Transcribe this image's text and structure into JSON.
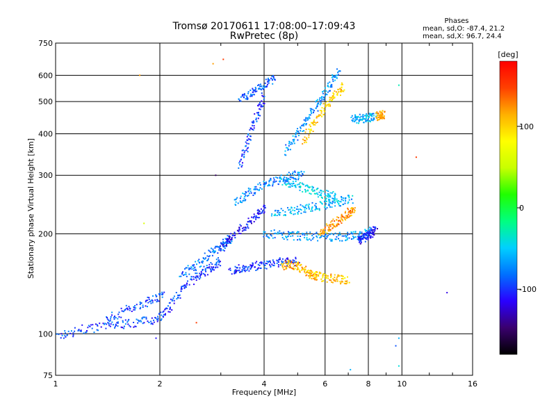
{
  "chart_data": {
    "type": "scatter",
    "title": "Tromsø 20170611 17:08:00–17:09:43",
    "subtitle": "RwPretec (8p)",
    "xlabel": "Frequency [MHz]",
    "ylabel": "Stationary phase Virtual Height [km]",
    "xscale": "log",
    "yscale": "log",
    "xlim": [
      1,
      16
    ],
    "ylim": [
      75,
      750
    ],
    "x_ticks": [
      1,
      2,
      4,
      6,
      8,
      10,
      16
    ],
    "x_tick_labels": [
      "1",
      "2",
      "4",
      "6",
      "8",
      "10",
      "16"
    ],
    "y_ticks": [
      75,
      100,
      200,
      300,
      400,
      500,
      600,
      750
    ],
    "y_tick_labels": [
      "75",
      "100",
      "200",
      "300",
      "400",
      "500",
      "600",
      "750"
    ],
    "grid": true,
    "stats": {
      "heading": "Phases",
      "line_o": "mean, sd,O: -87.4, 21.2",
      "line_x": "mean, sd,X:  96.7, 24.4"
    },
    "colorbar": {
      "label": "[deg]",
      "range": [
        -180,
        180
      ],
      "ticks": [
        100,
        0,
        -100
      ],
      "tick_labels": [
        "100",
        "0",
        "-100"
      ],
      "colormap": [
        "#000000",
        "#3a006e",
        "#2a00ff",
        "#0070ff",
        "#00d0ff",
        "#00ff80",
        "#20ff00",
        "#c8ff00",
        "#ffff00",
        "#ffb000",
        "#ff4000",
        "#ff0000"
      ]
    },
    "trace_segments": [
      {
        "x": [
          1.0,
          1.2,
          1.45,
          1.7,
          1.95,
          2.15,
          2.35,
          2.6,
          2.8,
          3.0
        ],
        "y": [
          98,
          103,
          106,
          108,
          111,
          120,
          140,
          150,
          158,
          165
        ],
        "phase": -95
      },
      {
        "x": [
          1.4,
          1.6,
          1.85,
          2.05
        ],
        "y": [
          110,
          118,
          125,
          132
        ],
        "phase": -90
      },
      {
        "x": [
          2.3,
          2.55,
          2.8,
          3.05,
          3.2
        ],
        "y": [
          150,
          160,
          175,
          185,
          195
        ],
        "phase": -80
      },
      {
        "x": [
          3.0,
          3.2,
          3.5,
          3.8,
          4.0
        ],
        "y": [
          180,
          195,
          210,
          225,
          240
        ],
        "phase": -110
      },
      {
        "x": [
          3.3,
          3.6,
          4.0,
          4.4,
          4.8,
          5.2
        ],
        "y": [
          250,
          265,
          280,
          290,
          300,
          300
        ],
        "phase": -75
      },
      {
        "x": [
          3.2,
          3.5,
          3.8,
          4.2,
          4.6,
          5.0
        ],
        "y": [
          155,
          158,
          160,
          162,
          165,
          165
        ],
        "phase": -100
      },
      {
        "x": [
          4.0,
          4.6,
          5.2,
          6.0,
          6.8,
          7.5,
          8.2
        ],
        "y": [
          200,
          198,
          197,
          196,
          196,
          198,
          205
        ],
        "phase": -70
      },
      {
        "x": [
          4.2,
          4.8,
          5.4,
          6.0,
          6.6,
          7.2
        ],
        "y": [
          230,
          235,
          240,
          245,
          250,
          255
        ],
        "phase": -60
      },
      {
        "x": [
          4.5,
          4.8,
          5.1,
          5.4,
          5.7
        ],
        "y": [
          160,
          162,
          158,
          152,
          148
        ],
        "phase": 110
      },
      {
        "x": [
          5.5,
          6.0,
          6.5,
          7.0
        ],
        "y": [
          150,
          148,
          146,
          145
        ],
        "phase": 105
      },
      {
        "x": [
          4.5,
          5.0,
          5.5,
          6.0,
          6.5
        ],
        "y": [
          290,
          280,
          270,
          262,
          258
        ],
        "phase": -50
      },
      {
        "x": [
          5.8,
          6.2,
          6.6,
          7.0,
          7.3
        ],
        "y": [
          200,
          210,
          220,
          230,
          240
        ],
        "phase": 120
      },
      {
        "x": [
          4.6,
          5.0,
          5.4,
          5.8,
          6.2,
          6.6
        ],
        "y": [
          350,
          400,
          450,
          500,
          560,
          620
        ],
        "phase": -70
      },
      {
        "x": [
          5.2,
          5.6,
          6.0,
          6.4,
          6.8
        ],
        "y": [
          380,
          430,
          480,
          520,
          560
        ],
        "phase": 100
      },
      {
        "x": [
          3.4,
          3.6,
          3.8,
          4.0
        ],
        "y": [
          320,
          380,
          450,
          520
        ],
        "phase": -95
      },
      {
        "x": [
          3.4,
          3.7,
          4.0,
          4.3
        ],
        "y": [
          505,
          530,
          560,
          590
        ],
        "phase": -90
      },
      {
        "x": [
          7.2,
          7.6,
          8.0,
          8.4
        ],
        "y": [
          440,
          444,
          448,
          452
        ],
        "phase": -60
      },
      {
        "x": [
          8.5,
          8.7,
          8.9
        ],
        "y": [
          452,
          455,
          458
        ],
        "phase": 120
      },
      {
        "x": [
          7.5,
          7.8,
          8.1,
          8.4
        ],
        "y": [
          190,
          195,
          200,
          206
        ],
        "phase": -110
      }
    ],
    "outlier_points": [
      {
        "x": 3.05,
        "y": 670,
        "phase": 150
      },
      {
        "x": 2.85,
        "y": 650,
        "phase": 120
      },
      {
        "x": 1.75,
        "y": 600,
        "phase": 120
      },
      {
        "x": 1.8,
        "y": 215,
        "phase": 60
      },
      {
        "x": 1.95,
        "y": 97,
        "phase": -110
      },
      {
        "x": 2.55,
        "y": 108,
        "phase": 150
      },
      {
        "x": 2.9,
        "y": 300,
        "phase": -150
      },
      {
        "x": 9.8,
        "y": 560,
        "phase": -30
      },
      {
        "x": 9.8,
        "y": 97,
        "phase": -60
      },
      {
        "x": 9.8,
        "y": 80,
        "phase": -40
      },
      {
        "x": 9.6,
        "y": 92,
        "phase": -90
      },
      {
        "x": 11.0,
        "y": 340,
        "phase": 150
      },
      {
        "x": 13.5,
        "y": 133,
        "phase": -120
      },
      {
        "x": 7.1,
        "y": 78,
        "phase": -60
      }
    ]
  }
}
